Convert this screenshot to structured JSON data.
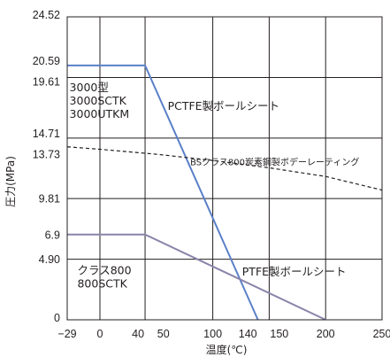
{
  "chart_data": {
    "type": "line",
    "title": "",
    "xlabel": "温度(℃)",
    "ylabel": "圧力(MPa)",
    "xlim": [
      -29,
      250
    ],
    "ylim": [
      0,
      24.52
    ],
    "x_ticks": [
      {
        "value": -29,
        "label": "−29"
      },
      {
        "value": 0,
        "label": "0"
      },
      {
        "value": 40,
        "label": "40"
      },
      {
        "value": 50,
        "label": "50"
      },
      {
        "value": 100,
        "label": "100"
      },
      {
        "value": 140,
        "label": "140"
      },
      {
        "value": 150,
        "label": "150"
      },
      {
        "value": 200,
        "label": "200"
      },
      {
        "value": 250,
        "label": "250"
      }
    ],
    "x_gridlines": [
      -29,
      0,
      40,
      100,
      150,
      200
    ],
    "y_ticks": [
      {
        "value": 0,
        "label": "0"
      },
      {
        "value": 4.9,
        "label": "4.90"
      },
      {
        "value": 6.9,
        "label": "6.9"
      },
      {
        "value": 9.81,
        "label": "9.81"
      },
      {
        "value": 13.73,
        "label": "13.73"
      },
      {
        "value": 14.71,
        "label": "14.71"
      },
      {
        "value": 19.61,
        "label": "19.61"
      },
      {
        "value": 20.59,
        "label": "20.59"
      },
      {
        "value": 24.52,
        "label": "24.52"
      }
    ],
    "y_gridlines": [
      4.9,
      9.81,
      14.71,
      19.61
    ],
    "grid": true,
    "series": [
      {
        "name": "",
        "color": "#5a80c7",
        "style": "solid",
        "x": [
          -29,
          40,
          140
        ],
        "y": [
          20.59,
          20.59,
          0
        ]
      },
      {
        "name": "",
        "color": "#8a83aa",
        "style": "solid",
        "x": [
          -29,
          40,
          200
        ],
        "y": [
          6.9,
          6.9,
          0
        ]
      },
      {
        "name": "",
        "color": "#231f20",
        "style": "dashed",
        "x": [
          -29,
          0,
          50,
          100,
          150,
          200,
          250
        ],
        "y": [
          14.0,
          13.8,
          13.4,
          12.9,
          12.3,
          11.6,
          10.5
        ]
      }
    ],
    "annotations": [
      {
        "lines": [
          "3000型",
          "3000SCTK",
          "3000UTKM"
        ],
        "x": -27,
        "y": 18.5
      },
      {
        "lines": [
          "PCTFE製ボールシート"
        ],
        "x": 60,
        "y": 17.0
      },
      {
        "lines": [
          "BSクラス800炭素鋼製ボデーレーティング"
        ],
        "x": 80,
        "y": 12.5,
        "small": true
      },
      {
        "lines": [
          "クラス800",
          "800SCTK"
        ],
        "x": -20,
        "y": 3.7
      },
      {
        "lines": [
          "PTFE製ボールシート"
        ],
        "x": 126,
        "y": 3.6
      }
    ]
  }
}
